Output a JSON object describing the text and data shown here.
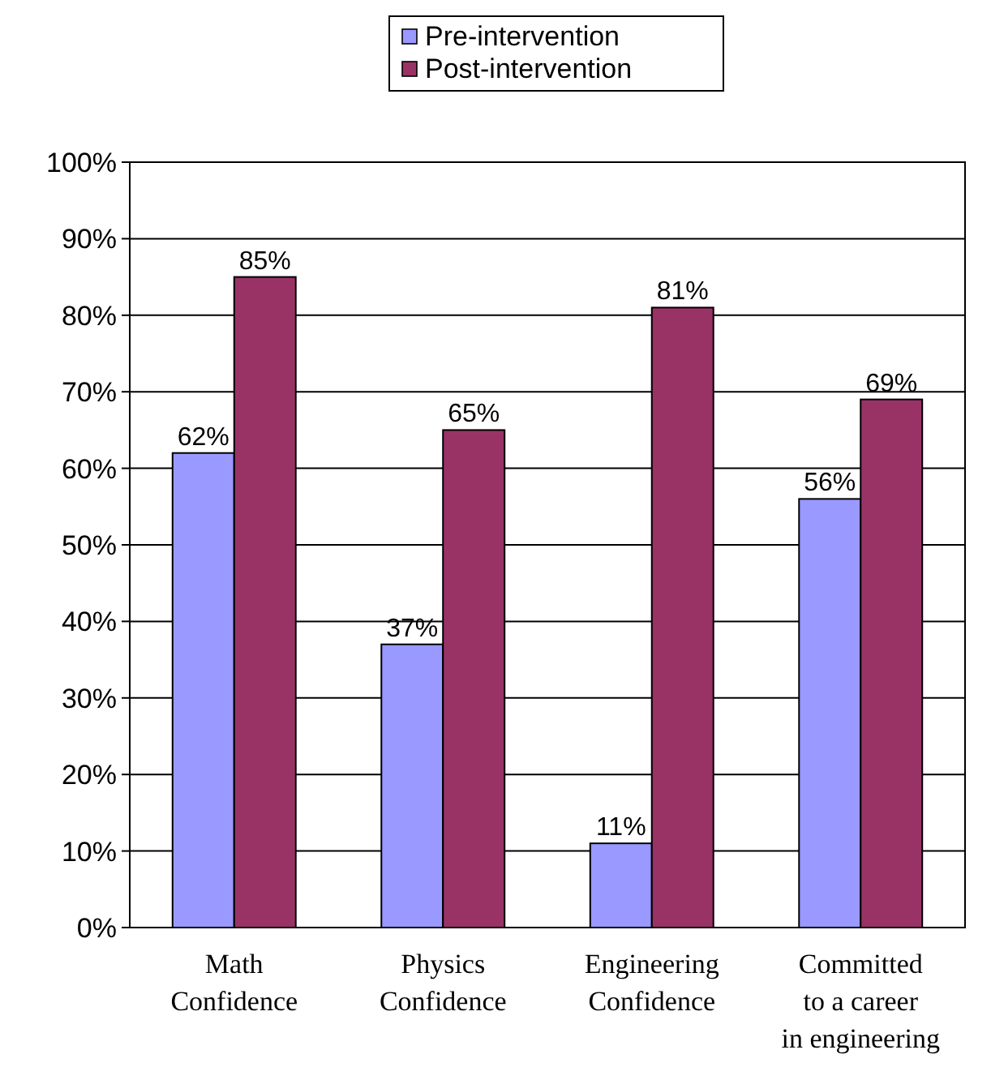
{
  "chart_data": {
    "type": "bar",
    "categories": [
      "Math\nConfidence",
      "Physics\nConfidence",
      "Engineering\nConfidence",
      "Committed\nto a career\nin engineering"
    ],
    "series": [
      {
        "name": "Pre-intervention",
        "color": "#9999ff",
        "values": [
          62,
          37,
          11,
          56
        ],
        "value_labels": [
          "62%",
          "37%",
          "11%",
          "56%"
        ]
      },
      {
        "name": "Post-intervention",
        "color": "#993366",
        "values": [
          85,
          65,
          81,
          69
        ],
        "value_labels": [
          "85%",
          "65%",
          "81%",
          "69%"
        ]
      }
    ],
    "ylim": [
      0,
      100
    ],
    "yticks": [
      {
        "value": 0,
        "label": "0%"
      },
      {
        "value": 10,
        "label": "10%"
      },
      {
        "value": 20,
        "label": "20%"
      },
      {
        "value": 30,
        "label": "30%"
      },
      {
        "value": 40,
        "label": "40%"
      },
      {
        "value": 50,
        "label": "50%"
      },
      {
        "value": 60,
        "label": "60%"
      },
      {
        "value": 70,
        "label": "70%"
      },
      {
        "value": 80,
        "label": "80%"
      },
      {
        "value": 90,
        "label": "90%"
      },
      {
        "value": 100,
        "label": "100%"
      }
    ],
    "grid": "y",
    "legend": "top"
  }
}
